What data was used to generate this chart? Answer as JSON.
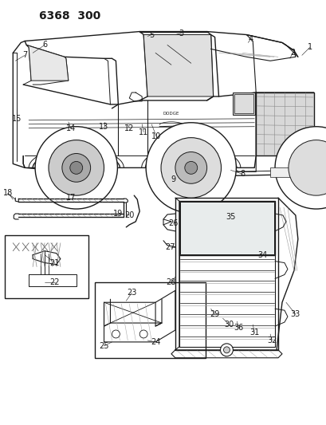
{
  "title": "6368  300",
  "bg_color": "#ffffff",
  "line_color": "#1a1a1a",
  "fig_width": 4.1,
  "fig_height": 5.33,
  "dpi": 100
}
